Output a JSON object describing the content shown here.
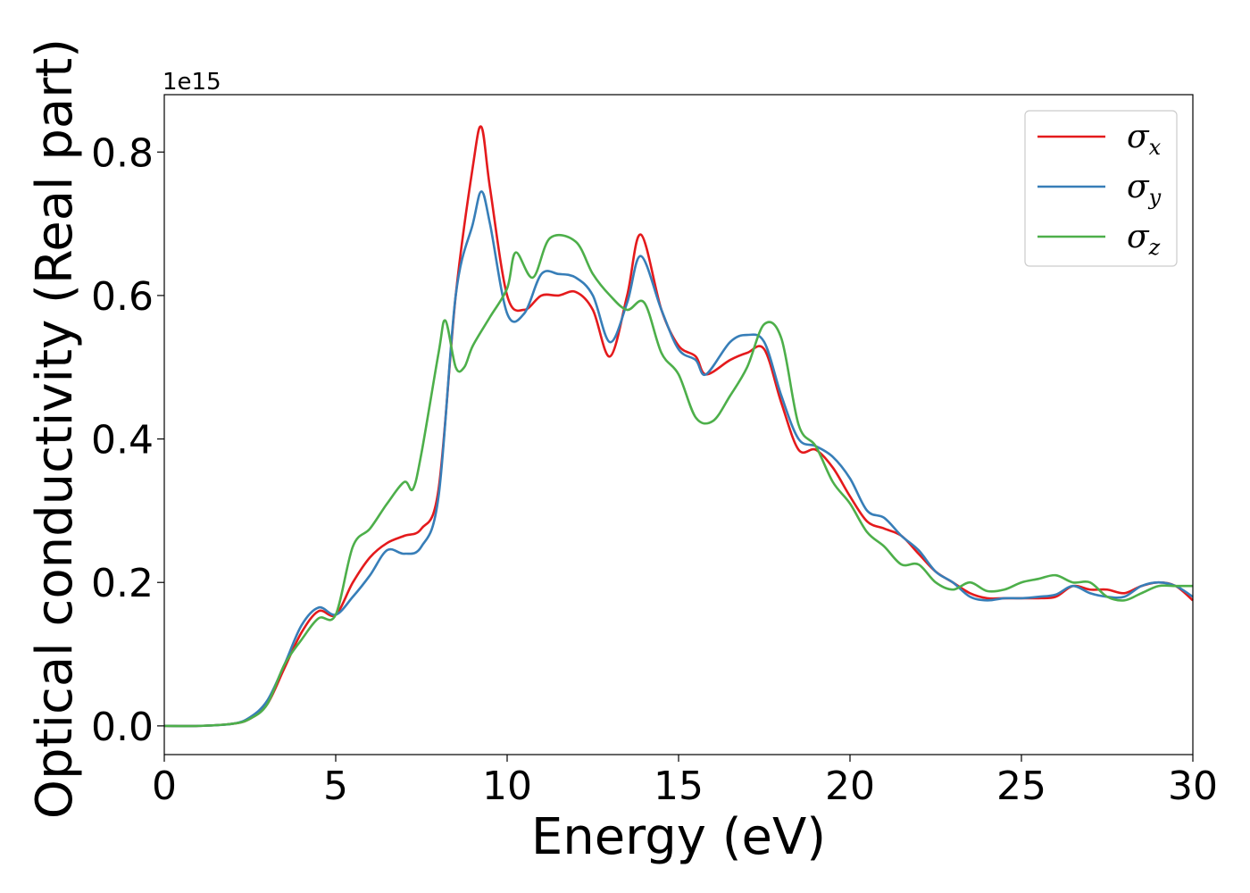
{
  "chart_data": {
    "type": "line",
    "title": "",
    "xlabel": "Energy (eV)",
    "ylabel": "Optical conductivity (Real part)",
    "y_offset_label": "1e15",
    "xlim": [
      0,
      30
    ],
    "ylim": [
      -0.04,
      0.88
    ],
    "xticks": [
      0,
      5,
      10,
      15,
      20,
      25,
      30
    ],
    "xtick_labels": [
      "0",
      "5",
      "10",
      "15",
      "20",
      "25",
      "30"
    ],
    "yticks": [
      0.0,
      0.2,
      0.4,
      0.6,
      0.8
    ],
    "ytick_labels": [
      "0.0",
      "0.2",
      "0.4",
      "0.6",
      "0.8"
    ],
    "grid": false,
    "legend_position": "top-right",
    "series": [
      {
        "name": "σx",
        "name_base": "σ",
        "name_sub": "x",
        "color": "#e41a1c",
        "x": [
          0,
          1,
          2,
          2.5,
          3,
          3.5,
          4,
          4.5,
          5,
          5.5,
          6,
          6.5,
          7,
          7.5,
          8,
          8.5,
          9,
          9.25,
          9.5,
          10,
          10.5,
          11,
          11.5,
          12,
          12.5,
          13,
          13.5,
          13.9,
          14.5,
          15,
          15.5,
          15.8,
          16.5,
          17,
          17.5,
          18,
          18.5,
          19,
          19.5,
          20,
          20.5,
          21,
          21.5,
          22,
          22.5,
          23,
          23.5,
          24,
          24.5,
          25,
          25.5,
          26,
          26.5,
          27,
          27.5,
          28,
          28.5,
          29,
          29.5,
          30
        ],
        "y": [
          0.0,
          0.0,
          0.003,
          0.01,
          0.03,
          0.08,
          0.13,
          0.16,
          0.155,
          0.2,
          0.235,
          0.255,
          0.265,
          0.275,
          0.33,
          0.6,
          0.78,
          0.835,
          0.75,
          0.6,
          0.58,
          0.6,
          0.6,
          0.605,
          0.58,
          0.515,
          0.6,
          0.685,
          0.58,
          0.53,
          0.515,
          0.49,
          0.51,
          0.52,
          0.525,
          0.45,
          0.385,
          0.385,
          0.36,
          0.32,
          0.285,
          0.275,
          0.265,
          0.24,
          0.215,
          0.2,
          0.185,
          0.178,
          0.178,
          0.178,
          0.178,
          0.18,
          0.195,
          0.19,
          0.19,
          0.185,
          0.195,
          0.2,
          0.195,
          0.175
        ]
      },
      {
        "name": "σy",
        "name_base": "σ",
        "name_sub": "y",
        "color": "#377eb8",
        "x": [
          0,
          1,
          2,
          2.5,
          3,
          3.5,
          4,
          4.5,
          5,
          5.5,
          6,
          6.5,
          7,
          7.5,
          8,
          8.5,
          9,
          9.25,
          9.5,
          10,
          10.5,
          11,
          11.5,
          12,
          12.5,
          13,
          13.5,
          13.9,
          14.5,
          15,
          15.5,
          15.8,
          16.5,
          17,
          17.5,
          18,
          18.5,
          19,
          19.5,
          20,
          20.5,
          21,
          21.5,
          22,
          22.5,
          23,
          23.5,
          24,
          24.5,
          25,
          25.5,
          26,
          26.5,
          27,
          27.5,
          28,
          28.5,
          29,
          29.5,
          30
        ],
        "y": [
          0.0,
          0.0,
          0.003,
          0.012,
          0.035,
          0.085,
          0.14,
          0.165,
          0.155,
          0.18,
          0.21,
          0.245,
          0.24,
          0.25,
          0.32,
          0.6,
          0.7,
          0.745,
          0.7,
          0.575,
          0.575,
          0.63,
          0.63,
          0.625,
          0.6,
          0.535,
          0.59,
          0.655,
          0.58,
          0.525,
          0.51,
          0.49,
          0.535,
          0.545,
          0.535,
          0.46,
          0.4,
          0.39,
          0.375,
          0.345,
          0.3,
          0.29,
          0.265,
          0.245,
          0.215,
          0.2,
          0.18,
          0.175,
          0.178,
          0.178,
          0.18,
          0.183,
          0.195,
          0.185,
          0.18,
          0.18,
          0.195,
          0.2,
          0.195,
          0.18
        ]
      },
      {
        "name": "σz",
        "name_base": "σ",
        "name_sub": "z",
        "color": "#4daf4a",
        "x": [
          0,
          1,
          2,
          2.5,
          3,
          3.5,
          4,
          4.5,
          5,
          5.5,
          6,
          6.5,
          7,
          7.25,
          7.5,
          8,
          8.2,
          8.5,
          8.75,
          9,
          9.5,
          10,
          10.25,
          10.75,
          11.25,
          12,
          12.5,
          13,
          13.5,
          14,
          14.5,
          15,
          15.5,
          16,
          16.5,
          17,
          17.5,
          18,
          18.5,
          19,
          19.5,
          20,
          20.5,
          21,
          21.5,
          22,
          22.5,
          23,
          23.5,
          24,
          24.5,
          25,
          25.5,
          26,
          26.5,
          27,
          27.5,
          28,
          28.5,
          29,
          29.5,
          30
        ],
        "y": [
          0.0,
          0.0,
          0.003,
          0.01,
          0.03,
          0.085,
          0.12,
          0.15,
          0.155,
          0.25,
          0.275,
          0.31,
          0.34,
          0.33,
          0.38,
          0.52,
          0.565,
          0.5,
          0.5,
          0.53,
          0.57,
          0.61,
          0.66,
          0.625,
          0.68,
          0.675,
          0.63,
          0.6,
          0.58,
          0.59,
          0.52,
          0.49,
          0.43,
          0.425,
          0.46,
          0.5,
          0.56,
          0.54,
          0.42,
          0.39,
          0.34,
          0.31,
          0.27,
          0.25,
          0.225,
          0.225,
          0.2,
          0.19,
          0.2,
          0.188,
          0.19,
          0.2,
          0.205,
          0.21,
          0.2,
          0.2,
          0.18,
          0.175,
          0.185,
          0.195,
          0.195,
          0.195
        ]
      }
    ]
  }
}
